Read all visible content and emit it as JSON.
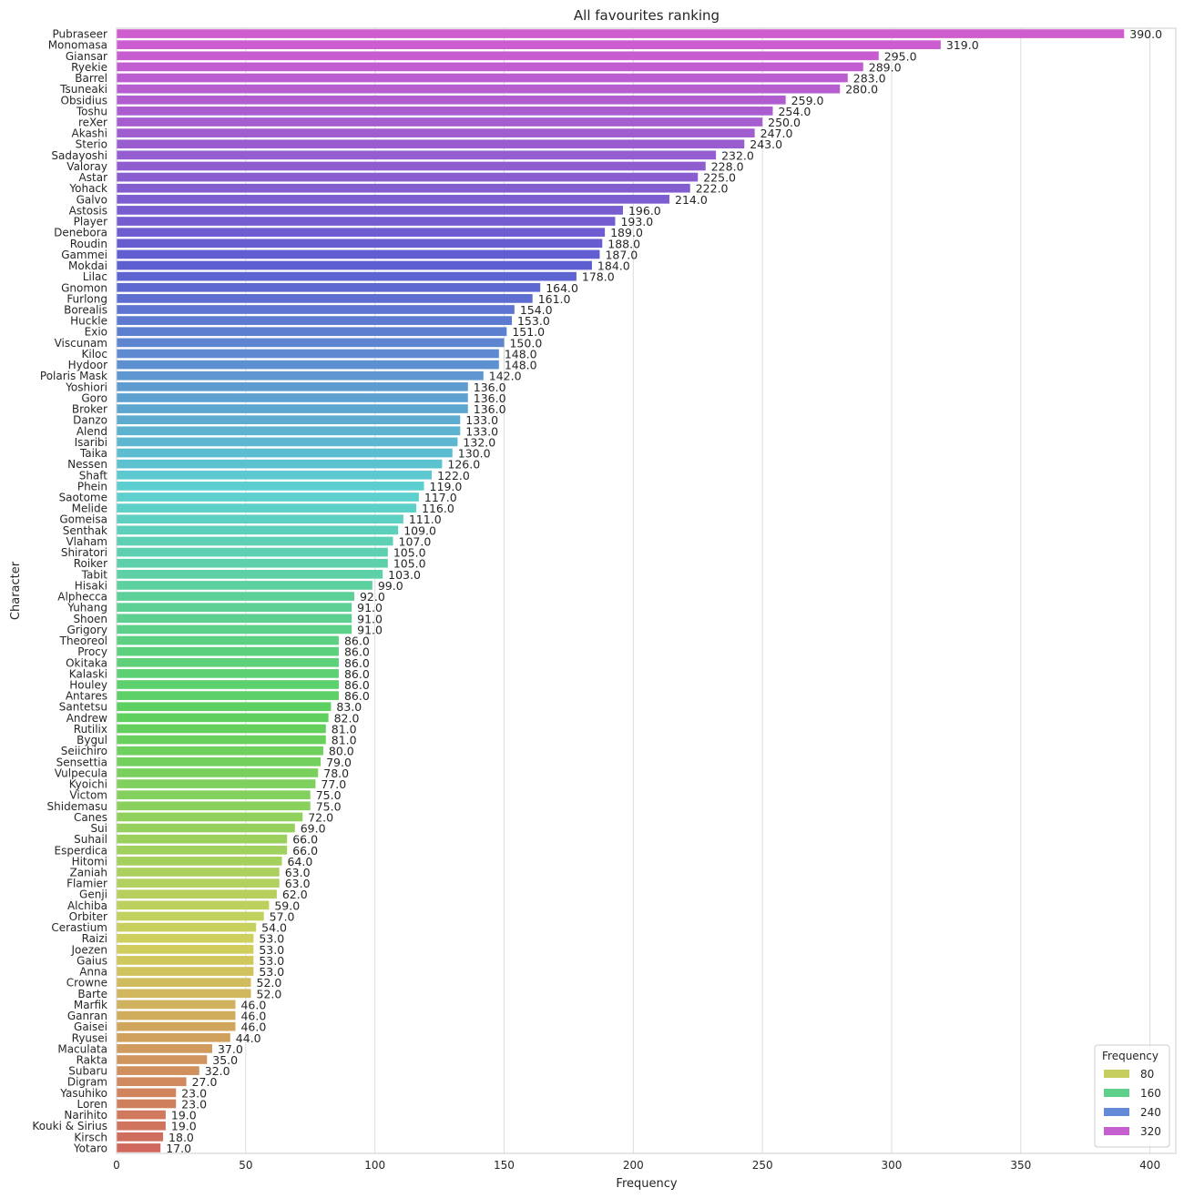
{
  "chart_data": {
    "type": "bar",
    "orientation": "horizontal",
    "title": "All favourites ranking",
    "xlabel": "Frequency",
    "ylabel": "Character",
    "xlim": [
      0,
      410
    ],
    "xticks": [
      "0",
      "50",
      "100",
      "150",
      "200",
      "250",
      "300",
      "350",
      "400"
    ],
    "grid": "vertical",
    "legend_position": "bottom-right",
    "legend": {
      "title": "Frequency",
      "entries": [
        {
          "label": "80",
          "color": "#c4cd5d"
        },
        {
          "label": "160",
          "color": "#5fd08c"
        },
        {
          "label": "240",
          "color": "#6389d8"
        },
        {
          "label": "320",
          "color": "#c55fd0"
        }
      ]
    },
    "categories": [
      "Pubraseer",
      "Monomasa",
      "Giansar",
      "Ryekie",
      "Barrel",
      "Tsuneaki",
      "Obsidius",
      "Toshu",
      "reXer",
      "Akashi",
      "Sterio",
      "Sadayoshi",
      "Valoray",
      "Astar",
      "Yohack",
      "Galvo",
      "Astosis",
      "Player",
      "Denebora",
      "Roudin",
      "Gammei",
      "Mokdai",
      "Lilac",
      "Gnomon",
      "Furlong",
      "Borealis",
      "Huckle",
      "Exio",
      "Viscunam",
      "Kiloc",
      "Hydoor",
      "Polaris Mask",
      "Yoshiori",
      "Goro",
      "Broker",
      "Danzo",
      "Alend",
      "Isaribi",
      "Taika",
      "Nessen",
      "Shaft",
      "Phein",
      "Saotome",
      "Melide",
      "Gomeisa",
      "Senthak",
      "Vlaham",
      "Shiratori",
      "Roiker",
      "Tabit",
      "Hisaki",
      "Alphecca",
      "Yuhang",
      "Shoen",
      "Grigory",
      "Theoreol",
      "Procy",
      "Okitaka",
      "Kalaski",
      "Houley",
      "Antares",
      "Santetsu",
      "Andrew",
      "Rutilix",
      "Bygul",
      "Seiichiro",
      "Sensettia",
      "Vulpecula",
      "Kyoichi",
      "Victom",
      "Shidemasu",
      "Canes",
      "Sui",
      "Suhail",
      "Esperdica",
      "Hitomi",
      "Zaniah",
      "Flamier",
      "Genji",
      "Alchiba",
      "Orbiter",
      "Cerastium",
      "Raizi",
      "Joezen",
      "Gaius",
      "Anna",
      "Crowne",
      "Barte",
      "Marfik",
      "Ganran",
      "Gaisei",
      "Ryusei",
      "Maculata",
      "Rakta",
      "Subaru",
      "Digram",
      "Yasuhiko",
      "Loren",
      "Narihito",
      "Kouki & Sirius",
      "Kirsch",
      "Yotaro"
    ],
    "values": [
      390,
      319,
      295,
      289,
      283,
      280,
      259,
      254,
      250,
      247,
      243,
      232,
      228,
      225,
      222,
      214,
      196,
      193,
      189,
      188,
      187,
      184,
      178,
      164,
      161,
      154,
      153,
      151,
      150,
      148,
      148,
      142,
      136,
      136,
      136,
      133,
      133,
      132,
      130,
      126,
      122,
      119,
      117,
      116,
      111,
      109,
      107,
      105,
      105,
      103,
      99,
      92,
      91,
      91,
      91,
      86,
      86,
      86,
      86,
      86,
      86,
      83,
      82,
      81,
      81,
      80,
      79,
      78,
      77,
      75,
      75,
      72,
      69,
      66,
      66,
      64,
      63,
      63,
      62,
      59,
      57,
      54,
      53,
      53,
      53,
      53,
      52,
      52,
      46,
      46,
      46,
      44,
      37,
      35,
      32,
      27,
      23,
      23,
      19,
      19,
      18,
      17
    ],
    "value_labels": [
      "390.0",
      "319.0",
      "295.0",
      "289.0",
      "283.0",
      "280.0",
      "259.0",
      "254.0",
      "250.0",
      "247.0",
      "243.0",
      "232.0",
      "228.0",
      "225.0",
      "222.0",
      "214.0",
      "196.0",
      "193.0",
      "189.0",
      "188.0",
      "187.0",
      "184.0",
      "178.0",
      "164.0",
      "161.0",
      "154.0",
      "153.0",
      "151.0",
      "150.0",
      "148.0",
      "148.0",
      "142.0",
      "136.0",
      "136.0",
      "136.0",
      "133.0",
      "133.0",
      "132.0",
      "130.0",
      "126.0",
      "122.0",
      "119.0",
      "117.0",
      "116.0",
      "111.0",
      "109.0",
      "107.0",
      "105.0",
      "105.0",
      "103.0",
      "99.0",
      "92.0",
      "91.0",
      "91.0",
      "91.0",
      "86.0",
      "86.0",
      "86.0",
      "86.0",
      "86.0",
      "86.0",
      "83.0",
      "82.0",
      "81.0",
      "81.0",
      "80.0",
      "79.0",
      "78.0",
      "77.0",
      "75.0",
      "75.0",
      "72.0",
      "69.0",
      "66.0",
      "66.0",
      "64.0",
      "63.0",
      "63.0",
      "62.0",
      "59.0",
      "57.0",
      "54.0",
      "53.0",
      "53.0",
      "53.0",
      "53.0",
      "52.0",
      "52.0",
      "46.0",
      "46.0",
      "46.0",
      "44.0",
      "37.0",
      "35.0",
      "32.0",
      "27.0",
      "23.0",
      "23.0",
      "19.0",
      "19.0",
      "18.0",
      "17.0"
    ]
  }
}
